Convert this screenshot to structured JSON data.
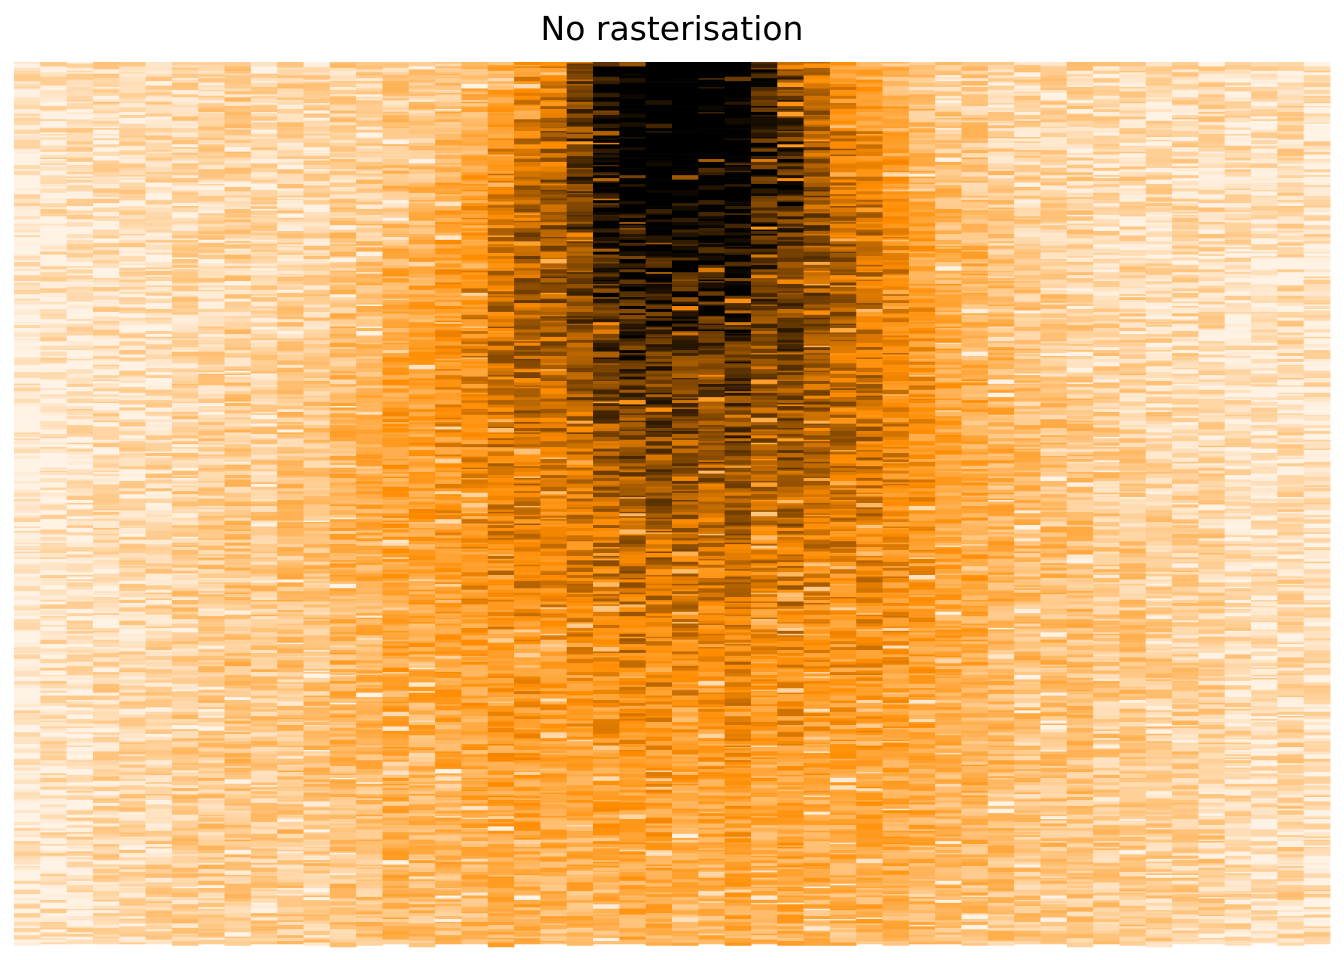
{
  "chart_data": {
    "type": "heatmap",
    "title": "No rasterisation",
    "xlabel": "",
    "ylabel": "",
    "axes_visible": false,
    "grid": false,
    "legend": "none",
    "color_scale": {
      "low": "#fff3e6",
      "mid": "#ff8c00",
      "high": "#000000"
    },
    "columns": 50,
    "rows": 600,
    "density_peak_column": 25,
    "density_peak_row": 0
  }
}
